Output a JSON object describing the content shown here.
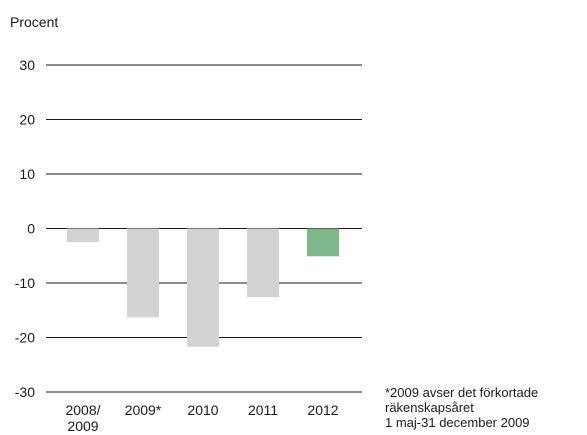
{
  "chart_data": {
    "type": "bar",
    "ylabel": "Procent",
    "ylim": [
      -30,
      30
    ],
    "yticks": [
      "30",
      "20",
      "10",
      "0",
      "-10",
      "-20",
      "-30"
    ],
    "categories": [
      [
        "2008/",
        "2009"
      ],
      [
        "2009*"
      ],
      [
        "2010"
      ],
      [
        "2011"
      ],
      [
        "2012"
      ]
    ],
    "values": [
      -2.5,
      -16.3,
      -21.7,
      -12.6,
      -5.1
    ],
    "bar_colors": [
      "#d3d3d3",
      "#d3d3d3",
      "#d3d3d3",
      "#d3d3d3",
      "#7fb888"
    ],
    "grid": true,
    "footnote": [
      "*2009 avser det förkortade",
      "räkenskapsåret",
      "1 maj-31 december 2009"
    ]
  },
  "colors": {
    "gridline": "#1a1a1a",
    "text": "#1a1a1a"
  }
}
